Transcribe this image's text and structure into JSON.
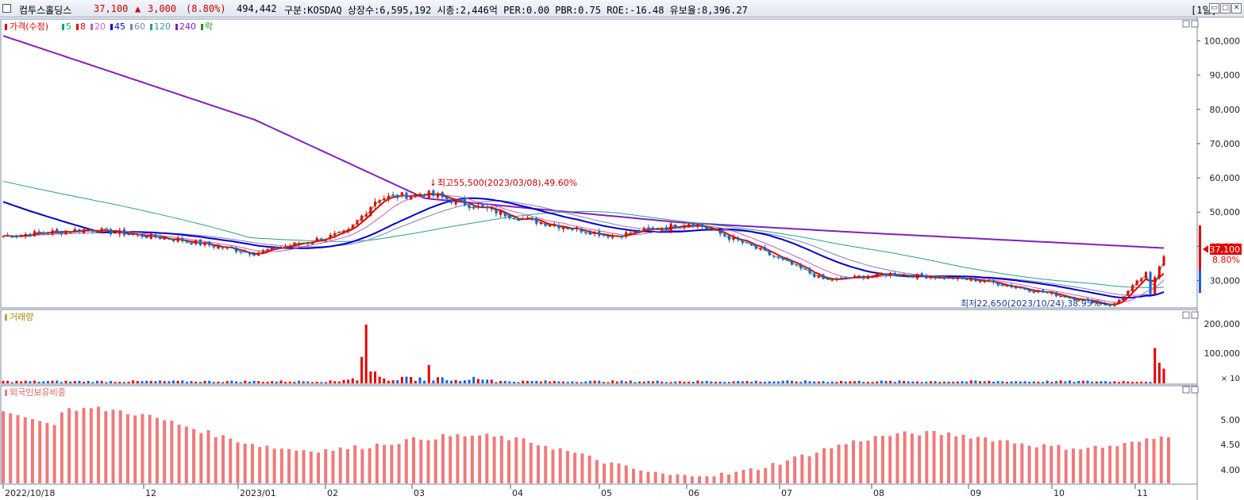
{
  "header": {
    "name": "컴투스홀딩스",
    "price": "37,100",
    "arrow": "▲",
    "change": "3,000",
    "change_pct": "(8.80%)",
    "volume": "494,442",
    "info": "구분:KOSDAQ 상장수:6,595,192 시총:2,446억 PER:0.00 PBR:0.75 ROE:-16.48 유보율:8,396.27",
    "period_button": "[1일]",
    "btn_min": "▭",
    "btn_max": "□",
    "btn_close": "✕"
  },
  "price_panel": {
    "legend": {
      "label": "가격(수정)",
      "ma": [
        {
          "label": "5",
          "color": "#00b050"
        },
        {
          "label": "8",
          "color": "#e60000"
        },
        {
          "label": "20",
          "color": "#c060c0"
        },
        {
          "label": "45",
          "color": "#0000cc"
        },
        {
          "label": "60",
          "color": "#8080c0"
        },
        {
          "label": "120",
          "color": "#2aa08a"
        },
        {
          "label": "240",
          "color": "#8020c0"
        }
      ],
      "fall_label": "락"
    },
    "y_ticks": [
      "100,000",
      "90,000",
      "80,000",
      "70,000",
      "60,000",
      "50,000",
      "40,000",
      "30,000"
    ],
    "high_annotation": "최고55,500(2023/03/08),49.60%",
    "low_annotation": "최저22,650(2023/10/24),38.95%",
    "current_price": "37,100",
    "current_pct": "8.80%"
  },
  "volume_panel": {
    "legend": "거래량",
    "y_ticks": [
      "200,000",
      "100,000"
    ],
    "unit": "× 10"
  },
  "foreign_panel": {
    "legend": "외국인보유비중",
    "y_ticks": [
      "5.00",
      "4.50",
      "4.00"
    ]
  },
  "x_axis": {
    "labels": [
      "2022/10/18",
      "12",
      "2023/01",
      "02",
      "03",
      "04",
      "05",
      "06",
      "07",
      "08",
      "09",
      "10",
      "11"
    ]
  },
  "colors": {
    "up": "#e60000",
    "down": "#1a5fd6",
    "ma240": "#8020c0",
    "ma45": "#0000cc",
    "ma120": "#2aa08a",
    "foreign_bar": "#f07a7a"
  },
  "chart_data": {
    "type": "line",
    "title": "",
    "xlabel": "",
    "ylabel": "",
    "ylim": [
      22000,
      105000
    ],
    "series": [
      {
        "name": "가격(수정)",
        "points": [
          [
            "2022-10-18",
            43000
          ],
          [
            "2022-11-15",
            45000
          ],
          [
            "2022-12-15",
            42000
          ],
          [
            "2023-01-10",
            38000
          ],
          [
            "2023-02-10",
            44000
          ],
          [
            "2023-02-20",
            54000
          ],
          [
            "2023-03-08",
            55500
          ],
          [
            "2023-04-10",
            48000
          ],
          [
            "2023-05-10",
            43000
          ],
          [
            "2023-06-05",
            47000
          ],
          [
            "2023-06-25",
            40000
          ],
          [
            "2023-07-20",
            30000
          ],
          [
            "2023-08-10",
            32000
          ],
          [
            "2023-09-10",
            30000
          ],
          [
            "2023-10-24",
            22650
          ],
          [
            "2023-11-10",
            37100
          ]
        ]
      },
      {
        "name": "240",
        "points": [
          [
            "2022-10-18",
            101500
          ],
          [
            "2023-01-10",
            77000
          ],
          [
            "2023-03-08",
            54000
          ],
          [
            "2023-06-01",
            47000
          ],
          [
            "2023-08-01",
            44000
          ],
          [
            "2023-11-10",
            39500
          ]
        ]
      }
    ],
    "volume": {
      "peak": 200000,
      "last": 120000
    },
    "foreign_ratio": {
      "range": [
        3.9,
        5.5
      ]
    }
  }
}
